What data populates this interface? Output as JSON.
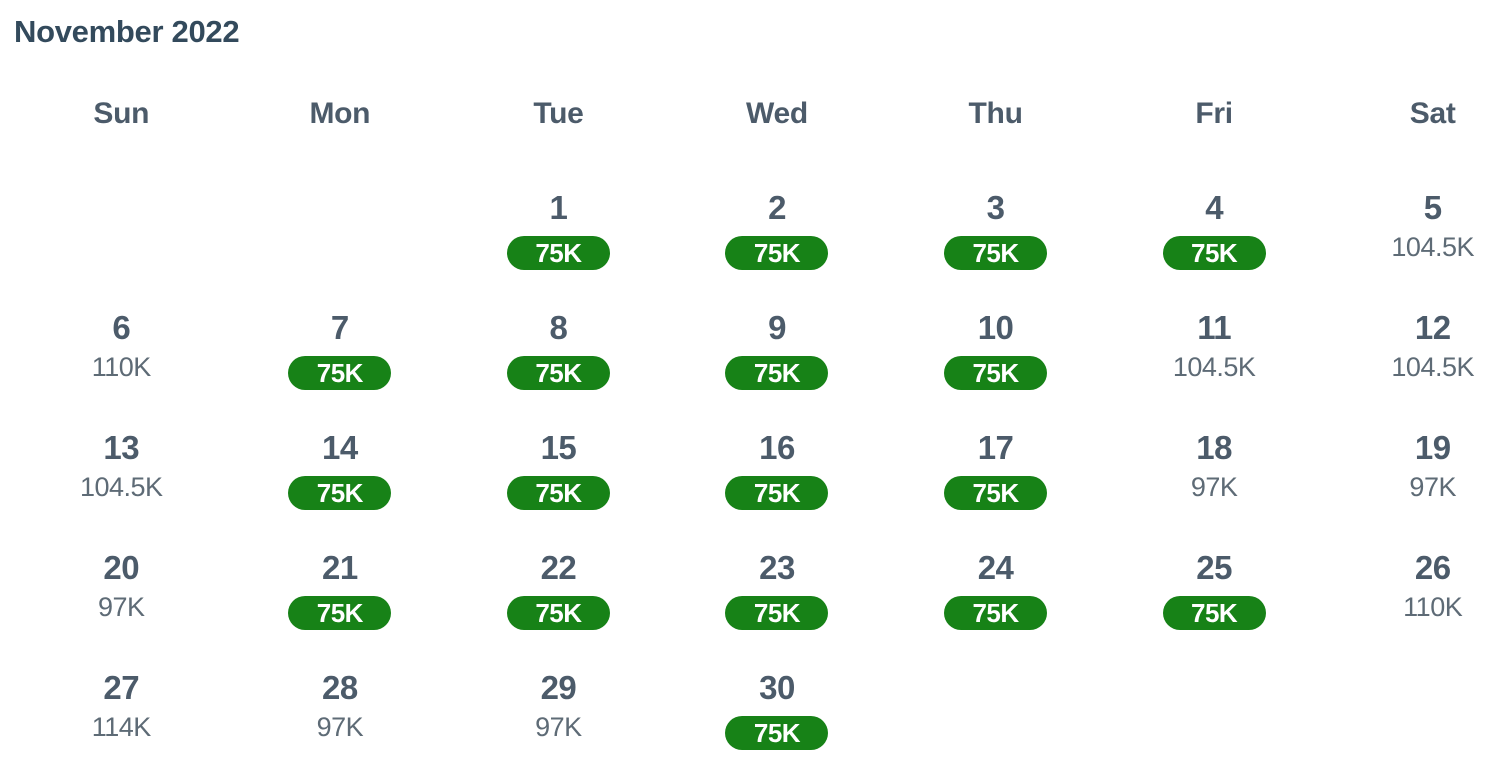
{
  "title": "November 2022",
  "weekday_headers": [
    "Sun",
    "Mon",
    "Tue",
    "Wed",
    "Thu",
    "Fri",
    "Sat"
  ],
  "colors": {
    "title_text": "#334a5c",
    "day_text": "#4c5b6a",
    "value_text": "#5e6b76",
    "award_pill_bg": "#178217",
    "award_pill_text": "#ffffff"
  },
  "legend": {
    "award_value": "75K",
    "award_style": "green-pill",
    "standard_style": "plain-text"
  },
  "weeks": [
    [
      null,
      null,
      {
        "day": "1",
        "value": "75K",
        "award": true
      },
      {
        "day": "2",
        "value": "75K",
        "award": true
      },
      {
        "day": "3",
        "value": "75K",
        "award": true
      },
      {
        "day": "4",
        "value": "75K",
        "award": true
      },
      {
        "day": "5",
        "value": "104.5K",
        "award": false
      }
    ],
    [
      {
        "day": "6",
        "value": "110K",
        "award": false
      },
      {
        "day": "7",
        "value": "75K",
        "award": true
      },
      {
        "day": "8",
        "value": "75K",
        "award": true
      },
      {
        "day": "9",
        "value": "75K",
        "award": true
      },
      {
        "day": "10",
        "value": "75K",
        "award": true
      },
      {
        "day": "11",
        "value": "104.5K",
        "award": false
      },
      {
        "day": "12",
        "value": "104.5K",
        "award": false
      }
    ],
    [
      {
        "day": "13",
        "value": "104.5K",
        "award": false
      },
      {
        "day": "14",
        "value": "75K",
        "award": true
      },
      {
        "day": "15",
        "value": "75K",
        "award": true
      },
      {
        "day": "16",
        "value": "75K",
        "award": true
      },
      {
        "day": "17",
        "value": "75K",
        "award": true
      },
      {
        "day": "18",
        "value": "97K",
        "award": false
      },
      {
        "day": "19",
        "value": "97K",
        "award": false
      }
    ],
    [
      {
        "day": "20",
        "value": "97K",
        "award": false
      },
      {
        "day": "21",
        "value": "75K",
        "award": true
      },
      {
        "day": "22",
        "value": "75K",
        "award": true
      },
      {
        "day": "23",
        "value": "75K",
        "award": true
      },
      {
        "day": "24",
        "value": "75K",
        "award": true
      },
      {
        "day": "25",
        "value": "75K",
        "award": true
      },
      {
        "day": "26",
        "value": "110K",
        "award": false
      }
    ],
    [
      {
        "day": "27",
        "value": "114K",
        "award": false
      },
      {
        "day": "28",
        "value": "97K",
        "award": false
      },
      {
        "day": "29",
        "value": "97K",
        "award": false
      },
      {
        "day": "30",
        "value": "75K",
        "award": true
      },
      null,
      null,
      null
    ]
  ]
}
